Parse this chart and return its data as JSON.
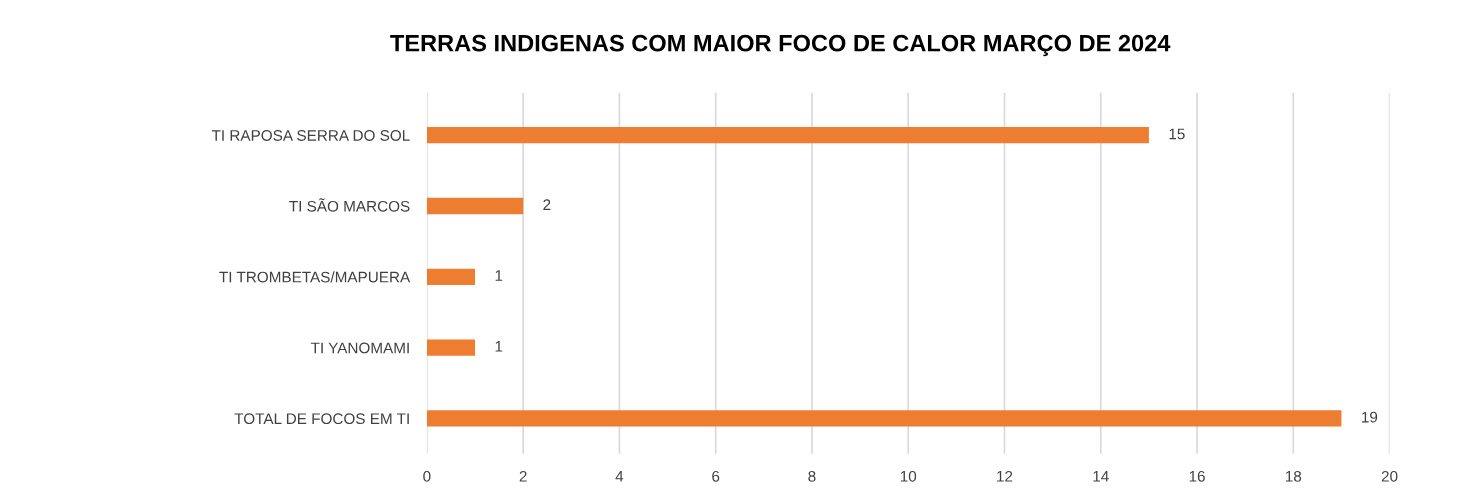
{
  "chart_data": {
    "type": "bar",
    "orientation": "horizontal",
    "title": "TERRAS INDIGENAS COM MAIOR FOCO DE CALOR MARÇO DE 2024",
    "categories": [
      "TI RAPOSA SERRA DO SOL",
      "TI SÃO MARCOS",
      "TI TROMBETAS/MAPUERA",
      "TI YANOMAMI",
      "TOTAL DE FOCOS EM TI"
    ],
    "values": [
      15,
      2,
      1,
      1,
      19
    ],
    "color": "#ed7d31",
    "xlim": [
      0,
      20
    ],
    "xticks": [
      0,
      2,
      4,
      6,
      8,
      10,
      12,
      14,
      16,
      18,
      20
    ],
    "grid": "x",
    "data_labels": true
  }
}
